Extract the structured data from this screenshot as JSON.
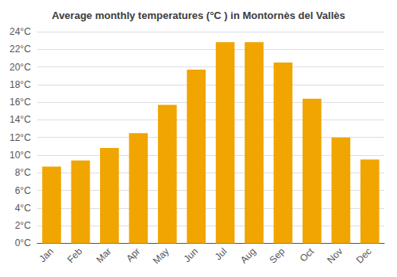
{
  "chart_data": {
    "type": "bar",
    "title": "Average monthly temperatures (°C ) in Montornès del Vallès",
    "categories": [
      "Jan",
      "Feb",
      "Mar",
      "Apr",
      "May",
      "Jun",
      "Jul",
      "Aug",
      "Sep",
      "Oct",
      "Nov",
      "Dec"
    ],
    "values": [
      8.7,
      9.4,
      10.8,
      12.5,
      15.7,
      19.7,
      22.8,
      22.8,
      20.5,
      16.4,
      12.0,
      9.5
    ],
    "color": "#F0A500",
    "ylim": [
      0,
      24
    ],
    "yticks": [
      {
        "value": 0,
        "label": "0°C"
      },
      {
        "value": 2,
        "label": "2°C"
      },
      {
        "value": 4,
        "label": "4°C"
      },
      {
        "value": 6,
        "label": "6°C"
      },
      {
        "value": 8,
        "label": "8°C"
      },
      {
        "value": 10,
        "label": "10°C"
      },
      {
        "value": 12,
        "label": "12°C"
      },
      {
        "value": 14,
        "label": "14°C"
      },
      {
        "value": 16,
        "label": "16°C"
      },
      {
        "value": 18,
        "label": "18°C"
      },
      {
        "value": 20,
        "label": "20°C"
      },
      {
        "value": 22,
        "label": "22°C"
      },
      {
        "value": 24,
        "label": "24°C"
      }
    ],
    "grid": true
  }
}
